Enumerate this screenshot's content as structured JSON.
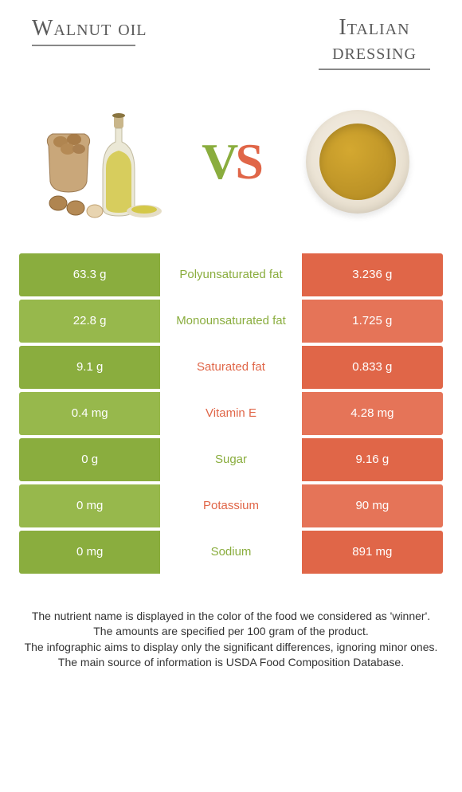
{
  "header": {
    "left_title": "Walnut oil",
    "right_title_line1": "Italian",
    "right_title_line2": "dressing"
  },
  "vs": {
    "v": "V",
    "s": "S"
  },
  "colors": {
    "left": "#8aad3e",
    "left_alt": "#97b84c",
    "right": "#e06648",
    "right_alt": "#e57458",
    "mid_green": "#8aad3e",
    "mid_orange": "#e06648"
  },
  "rows": [
    {
      "left": "63.3 g",
      "label": "Polyunsaturated fat",
      "right": "3.236 g",
      "winner": "left",
      "alt": false
    },
    {
      "left": "22.8 g",
      "label": "Monounsaturated fat",
      "right": "1.725 g",
      "winner": "left",
      "alt": true
    },
    {
      "left": "9.1 g",
      "label": "Saturated fat",
      "right": "0.833 g",
      "winner": "right",
      "alt": false
    },
    {
      "left": "0.4 mg",
      "label": "Vitamin E",
      "right": "4.28 mg",
      "winner": "right",
      "alt": true
    },
    {
      "left": "0 g",
      "label": "Sugar",
      "right": "9.16 g",
      "winner": "left",
      "alt": false
    },
    {
      "left": "0 mg",
      "label": "Potassium",
      "right": "90 mg",
      "winner": "right",
      "alt": true
    },
    {
      "left": "0 mg",
      "label": "Sodium",
      "right": "891 mg",
      "winner": "left",
      "alt": false
    }
  ],
  "footer": {
    "line1": "The nutrient name is displayed in the color of the food we considered as 'winner'.",
    "line2": "The amounts are specified per 100 gram of the product.",
    "line3": "The infographic aims to display only the significant differences, ignoring minor ones.",
    "line4": "The main source of information is USDA Food Composition Database."
  }
}
